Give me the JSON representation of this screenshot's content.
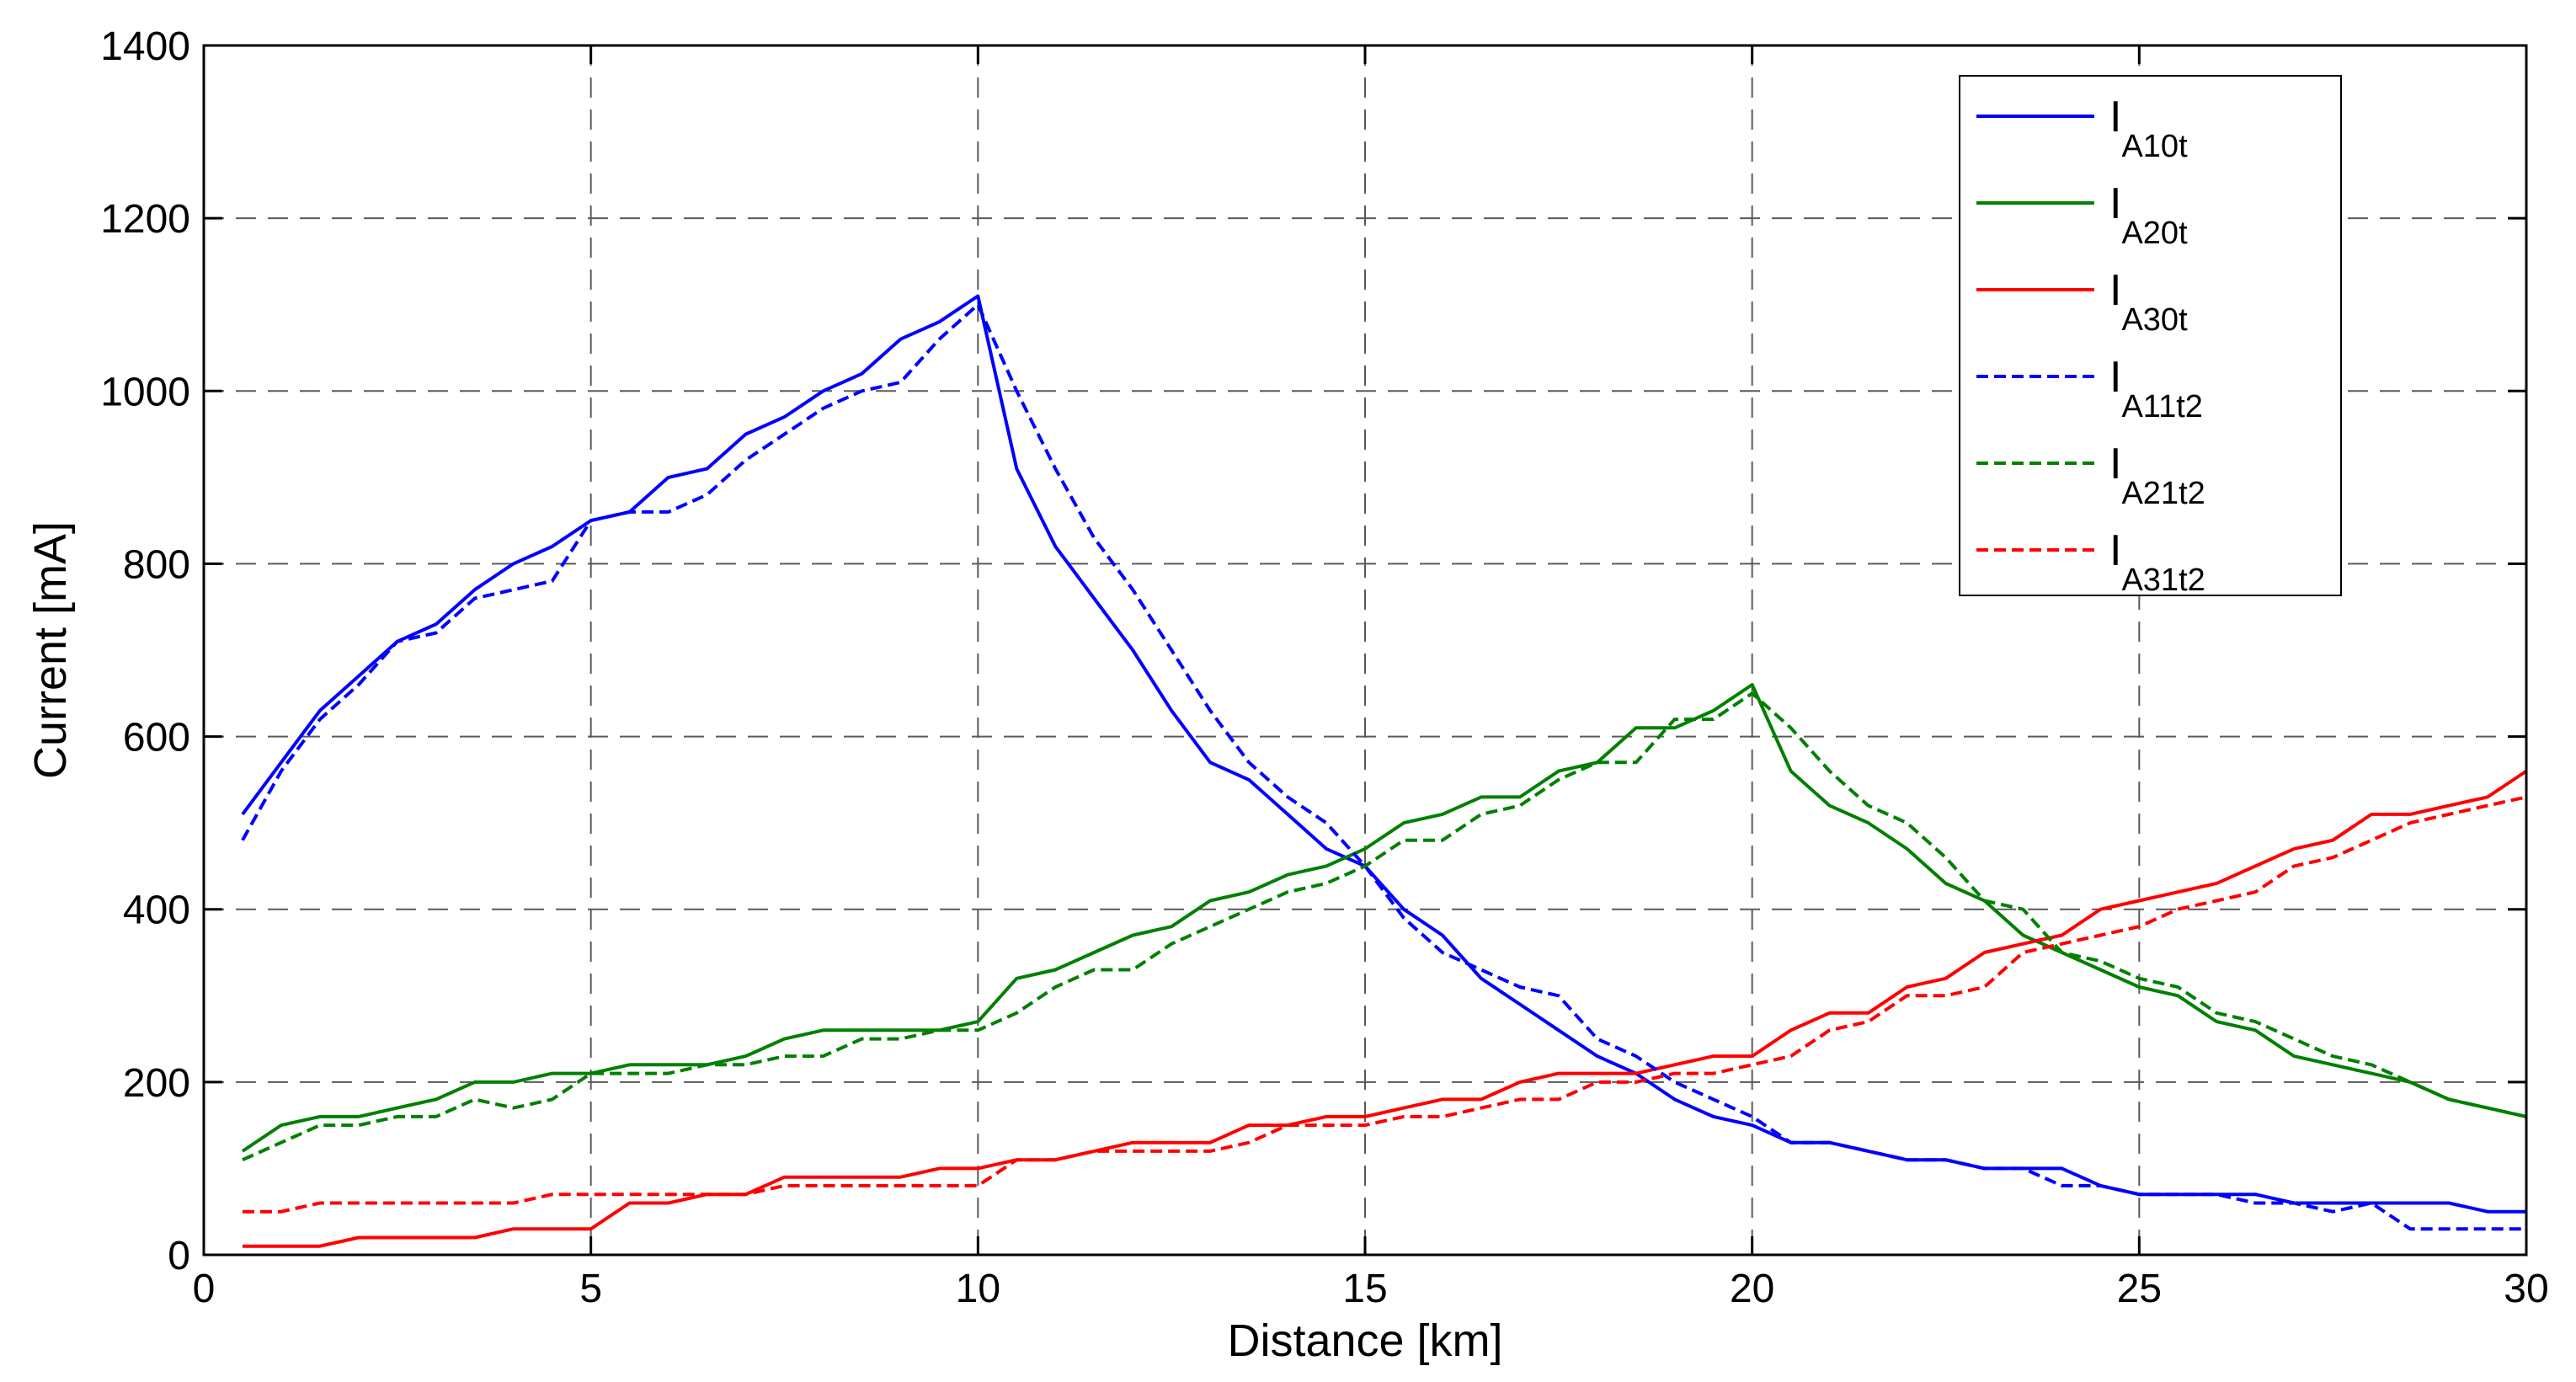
{
  "chart_data": {
    "type": "line",
    "title": "",
    "xlabel": "Distance [km]",
    "ylabel": "Current [mA]",
    "xlim": [
      0,
      30
    ],
    "ylim": [
      0,
      1400
    ],
    "xticks": [
      0,
      5,
      10,
      15,
      20,
      25,
      30
    ],
    "yticks": [
      0,
      200,
      400,
      600,
      800,
      1000,
      1200,
      1400
    ],
    "grid": true,
    "legend_position": "top-right",
    "x": [
      0.5,
      1,
      1.5,
      2,
      2.5,
      3,
      3.5,
      4,
      4.5,
      5,
      5.5,
      6,
      6.5,
      7,
      7.5,
      8,
      8.5,
      9,
      9.5,
      10,
      10.5,
      11,
      11.5,
      12,
      12.5,
      13,
      13.5,
      14,
      14.5,
      15,
      15.5,
      16,
      16.5,
      17,
      17.5,
      18,
      18.5,
      19,
      19.5,
      20,
      20.5,
      21,
      21.5,
      22,
      22.5,
      23,
      23.5,
      24,
      24.5,
      25,
      25.5,
      26,
      26.5,
      27,
      27.5,
      28,
      28.5,
      29,
      29.5,
      30
    ],
    "series": [
      {
        "name": "I",
        "sub": "A10t",
        "color": "#0000ff",
        "dash": "solid",
        "values": [
          510,
          570,
          630,
          670,
          710,
          730,
          770,
          800,
          820,
          850,
          860,
          900,
          910,
          950,
          970,
          1000,
          1020,
          1060,
          1080,
          1110,
          910,
          820,
          760,
          700,
          630,
          570,
          550,
          510,
          470,
          450,
          400,
          370,
          320,
          290,
          260,
          230,
          210,
          180,
          160,
          150,
          130,
          130,
          120,
          110,
          110,
          100,
          100,
          100,
          80,
          70,
          70,
          70,
          70,
          60,
          60,
          60,
          60,
          60,
          50,
          50
        ]
      },
      {
        "name": "I",
        "sub": "A20t",
        "color": "#008000",
        "dash": "solid",
        "values": [
          120,
          150,
          160,
          160,
          170,
          180,
          200,
          200,
          210,
          210,
          220,
          220,
          220,
          230,
          250,
          260,
          260,
          260,
          260,
          270,
          320,
          330,
          350,
          370,
          380,
          410,
          420,
          440,
          450,
          470,
          500,
          510,
          530,
          530,
          560,
          570,
          610,
          610,
          630,
          660,
          560,
          520,
          500,
          470,
          430,
          410,
          370,
          350,
          330,
          310,
          300,
          270,
          260,
          230,
          220,
          210,
          200,
          180,
          170,
          160
        ]
      },
      {
        "name": "I",
        "sub": "A30t",
        "color": "#ff0000",
        "dash": "solid",
        "values": [
          10,
          10,
          10,
          20,
          20,
          20,
          20,
          30,
          30,
          30,
          60,
          60,
          70,
          70,
          90,
          90,
          90,
          90,
          100,
          100,
          110,
          110,
          120,
          130,
          130,
          130,
          150,
          150,
          160,
          160,
          170,
          180,
          180,
          200,
          210,
          210,
          210,
          220,
          230,
          230,
          260,
          280,
          280,
          310,
          320,
          350,
          360,
          370,
          400,
          410,
          420,
          430,
          450,
          470,
          480,
          510,
          510,
          520,
          530,
          560
        ]
      },
      {
        "name": "I",
        "sub": "A11t2",
        "color": "#0000ff",
        "dash": "dashed",
        "values": [
          480,
          560,
          620,
          660,
          710,
          720,
          760,
          770,
          780,
          850,
          860,
          860,
          880,
          920,
          950,
          980,
          1000,
          1010,
          1060,
          1100,
          1000,
          910,
          830,
          770,
          700,
          630,
          570,
          530,
          500,
          450,
          390,
          350,
          330,
          310,
          300,
          250,
          230,
          200,
          180,
          160,
          130,
          130,
          120,
          110,
          110,
          100,
          100,
          80,
          80,
          70,
          70,
          70,
          60,
          60,
          50,
          60,
          30,
          30,
          30,
          30
        ]
      },
      {
        "name": "I",
        "sub": "A21t2",
        "color": "#008000",
        "dash": "dashed",
        "values": [
          110,
          130,
          150,
          150,
          160,
          160,
          180,
          170,
          180,
          210,
          210,
          210,
          220,
          220,
          230,
          230,
          250,
          250,
          260,
          260,
          280,
          310,
          330,
          330,
          360,
          380,
          400,
          420,
          430,
          450,
          480,
          480,
          510,
          520,
          550,
          570,
          570,
          620,
          620,
          650,
          610,
          560,
          520,
          500,
          460,
          410,
          400,
          350,
          340,
          320,
          310,
          280,
          270,
          250,
          230,
          220,
          200,
          180,
          170,
          160
        ]
      },
      {
        "name": "I",
        "sub": "A31t2",
        "color": "#ff0000",
        "dash": "dashed",
        "values": [
          50,
          50,
          60,
          60,
          60,
          60,
          60,
          60,
          70,
          70,
          70,
          70,
          70,
          70,
          80,
          80,
          80,
          80,
          80,
          80,
          110,
          110,
          120,
          120,
          120,
          120,
          130,
          150,
          150,
          150,
          160,
          160,
          170,
          180,
          180,
          200,
          200,
          210,
          210,
          220,
          230,
          260,
          270,
          300,
          300,
          310,
          350,
          360,
          370,
          380,
          400,
          410,
          420,
          450,
          460,
          480,
          500,
          510,
          520,
          530
        ]
      }
    ]
  }
}
